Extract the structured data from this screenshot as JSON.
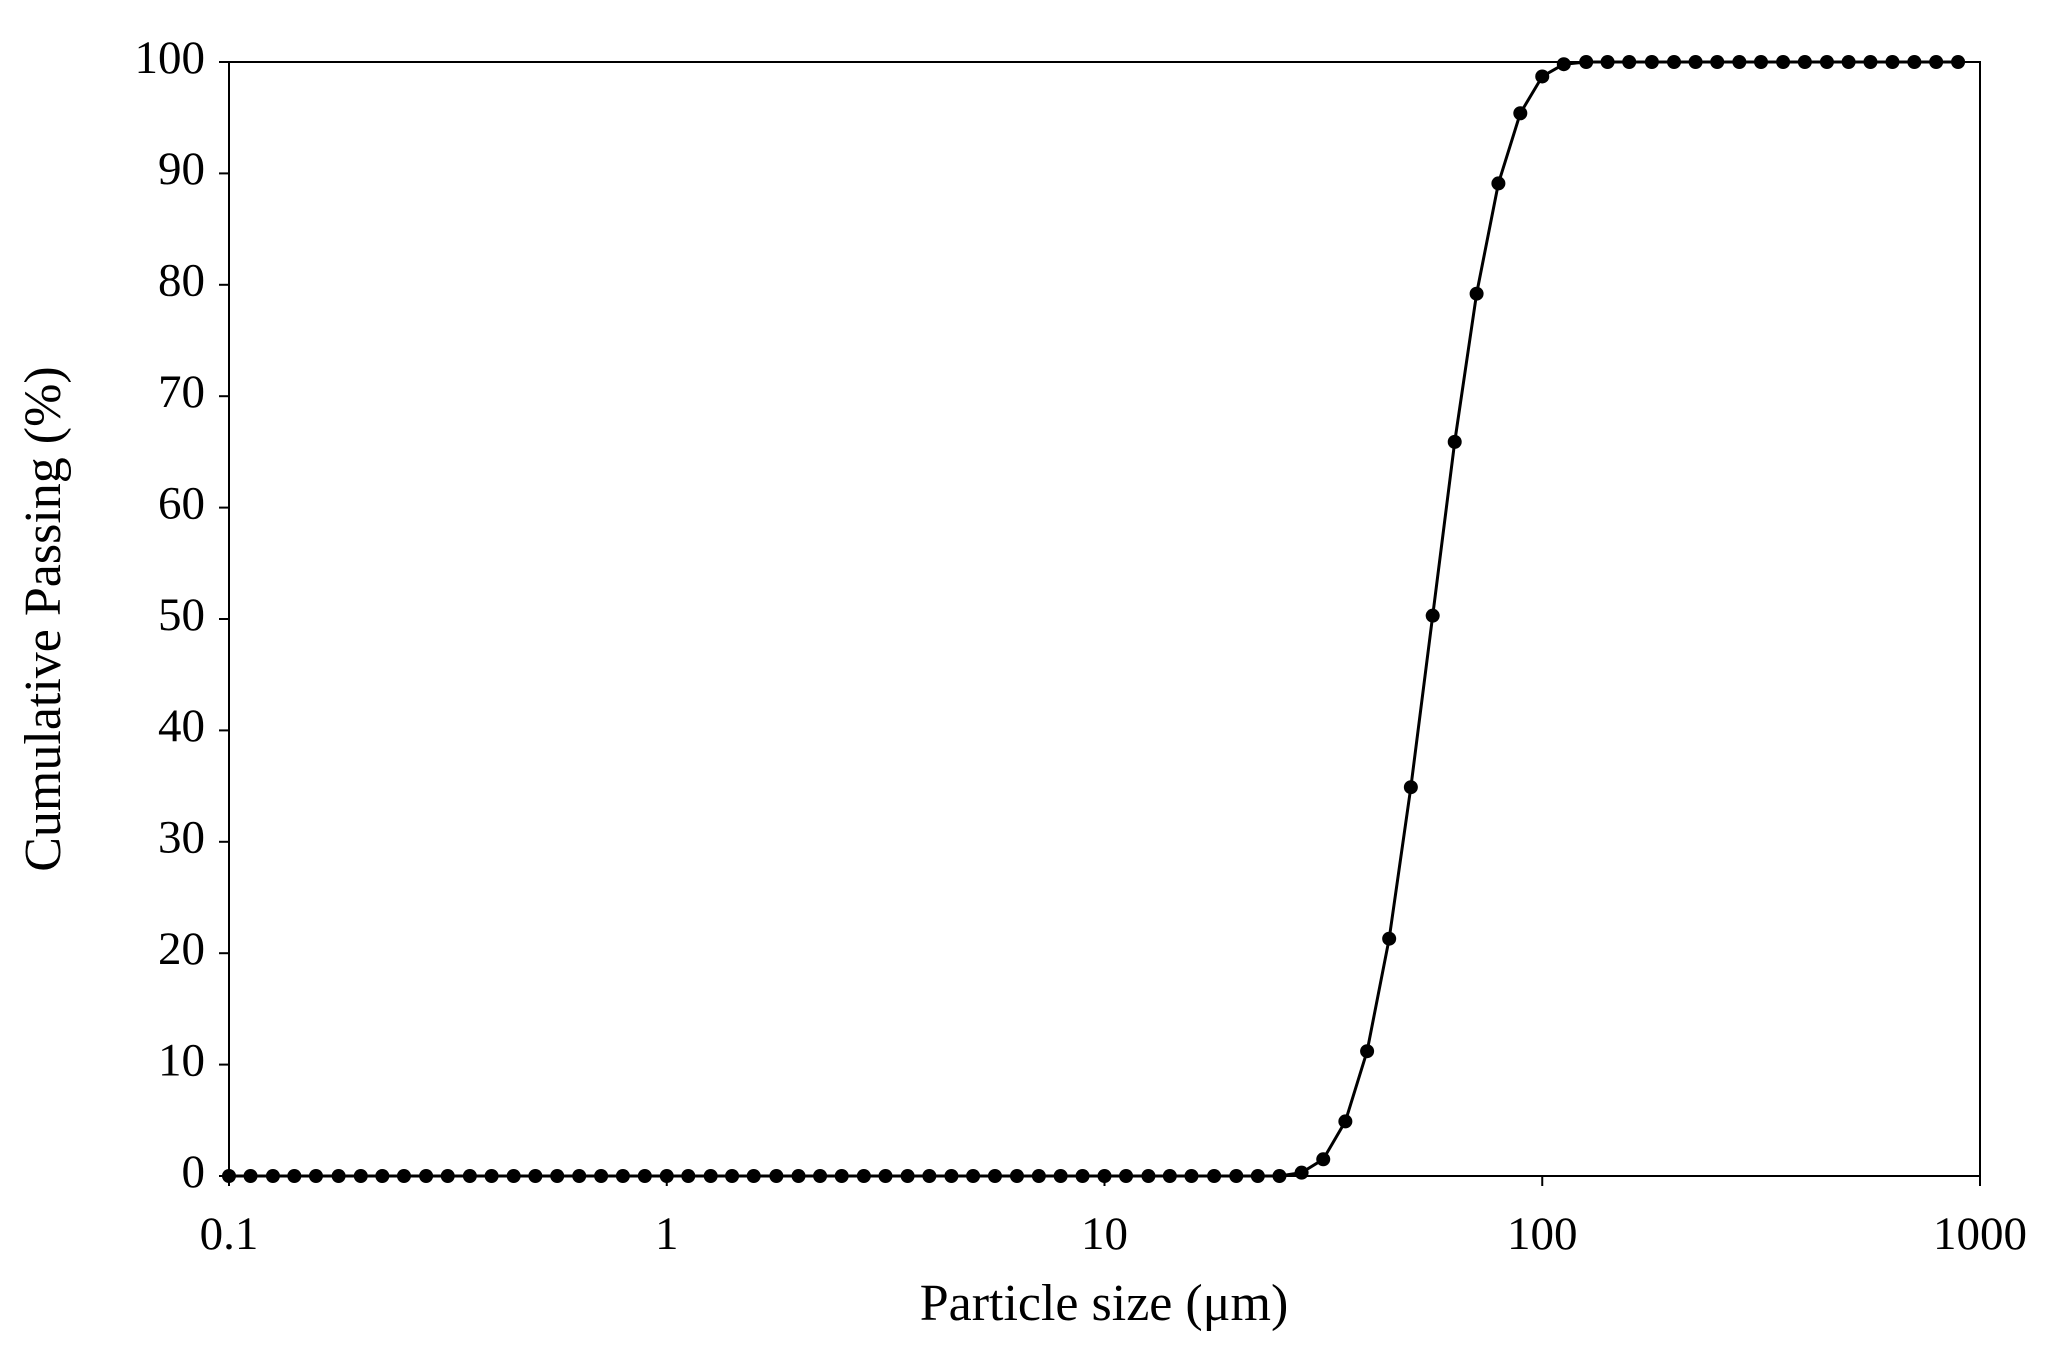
{
  "chart_data": {
    "type": "line",
    "x_label": "Particle size (μm)",
    "y_label": "Cumulative Passing (%)",
    "x_log": true,
    "xlim": [
      0.1,
      1000
    ],
    "xticks": [
      0.1,
      1,
      10,
      100,
      1000
    ],
    "ylim": [
      0,
      100
    ],
    "yticks": [
      0,
      10,
      20,
      30,
      40,
      50,
      60,
      70,
      80,
      90,
      100
    ],
    "grid": false,
    "markers": true,
    "series": [
      {
        "color": "#000000",
        "x": [
          0.1,
          0.112,
          0.126,
          0.141,
          0.158,
          0.178,
          0.2,
          0.224,
          0.251,
          0.282,
          0.316,
          0.355,
          0.398,
          0.447,
          0.501,
          0.562,
          0.631,
          0.708,
          0.794,
          0.891,
          1,
          1.12,
          1.26,
          1.41,
          1.58,
          1.78,
          2,
          2.24,
          2.51,
          2.82,
          3.16,
          3.55,
          3.98,
          4.47,
          5.01,
          5.62,
          6.31,
          7.08,
          7.94,
          8.91,
          10,
          11.2,
          12.6,
          14.1,
          15.8,
          17.8,
          20,
          22.4,
          25.1,
          28.2,
          31.6,
          35.5,
          39.8,
          44.7,
          50.1,
          56.2,
          63.1,
          70.8,
          79.4,
          89.1,
          100,
          112,
          126,
          141,
          158,
          178,
          200,
          224,
          251,
          282,
          316,
          355,
          398,
          447,
          501,
          562,
          631,
          708,
          794,
          891
        ],
        "values": [
          0,
          0,
          0,
          0,
          0,
          0,
          0,
          0,
          0,
          0,
          0,
          0,
          0,
          0,
          0,
          0,
          0,
          0,
          0,
          0,
          0,
          0,
          0,
          0,
          0,
          0,
          0,
          0,
          0,
          0,
          0,
          0,
          0,
          0,
          0,
          0,
          0,
          0,
          0,
          0,
          0,
          0,
          0,
          0,
          0,
          0,
          0,
          0,
          0,
          0.3,
          1.5,
          4.9,
          11.2,
          21.3,
          34.9,
          50.3,
          65.9,
          79.2,
          89.1,
          95.4,
          98.7,
          99.8,
          100,
          100,
          100,
          100,
          100,
          100,
          100,
          100,
          100,
          100,
          100,
          100,
          100,
          100,
          100,
          100,
          100,
          100
        ]
      }
    ]
  }
}
